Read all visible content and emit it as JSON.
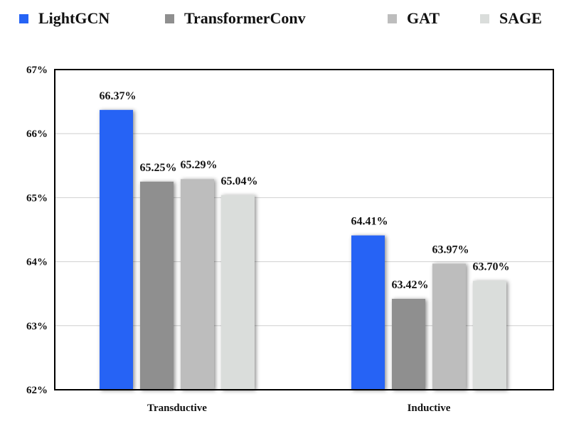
{
  "chart_data": {
    "type": "bar",
    "categories": [
      "Transductive",
      "Inductive"
    ],
    "series": [
      {
        "name": "LightGCN",
        "values": [
          66.37,
          64.41
        ],
        "labels": [
          "66.37%",
          "64.41%"
        ],
        "color": "#2563f5"
      },
      {
        "name": "TransformerConv",
        "values": [
          65.25,
          63.42
        ],
        "labels": [
          "65.25%",
          "63.42%"
        ],
        "color": "#8f8f8f"
      },
      {
        "name": "GAT",
        "values": [
          65.29,
          63.97
        ],
        "labels": [
          "65.29%",
          "63.97%"
        ],
        "color": "#bdbdbd"
      },
      {
        "name": "SAGE",
        "values": [
          65.04,
          63.7
        ],
        "labels": [
          "65.04%",
          "63.70%"
        ],
        "color": "#dadddb"
      }
    ],
    "ylim": [
      62,
      67
    ],
    "yticks": [
      62,
      63,
      64,
      65,
      66,
      67
    ],
    "ytick_labels": [
      "62%",
      "63%",
      "64%",
      "65%",
      "66%",
      "67%"
    ],
    "grid": true,
    "legend_position": "top",
    "title": "",
    "xlabel": "",
    "ylabel": ""
  }
}
